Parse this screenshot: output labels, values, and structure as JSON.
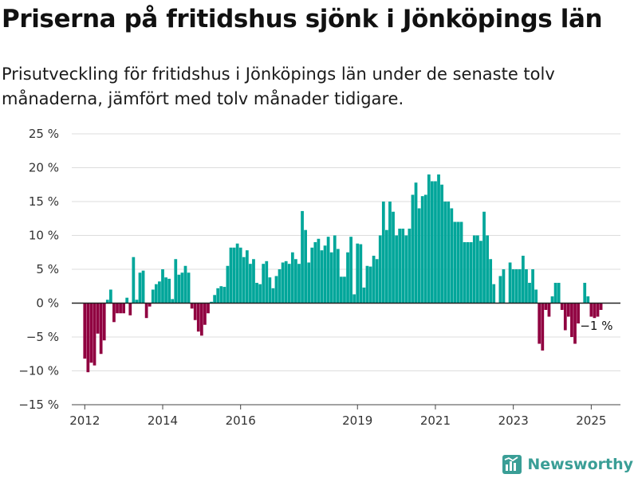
{
  "title": "Priserna på fritidshus sjönk i Jönköpings län",
  "subtitle": "Prisutveckling för fritidshus i Jönköpings län under de senaste tolv månaderna, jämfört med tolv månader tidigare.",
  "brand": {
    "name": "Newsworthy",
    "icon": "newsworthy-logo-icon"
  },
  "colors": {
    "positive": "#00a69a",
    "negative": "#900040",
    "grid": "#dddddd",
    "zero": "#222222"
  },
  "chart_data": {
    "type": "bar",
    "xlabel": "",
    "ylabel": "",
    "ylim": [
      -15,
      25
    ],
    "y_ticks": [
      25,
      20,
      15,
      10,
      5,
      0,
      -5,
      -10,
      -15
    ],
    "y_tick_labels": [
      "25 %",
      "20 %",
      "15 %",
      "10 %",
      "5 %",
      "0 %",
      "−5 %",
      "−10 %",
      "−15 %"
    ],
    "x_ticks": [
      {
        "label": "2012",
        "date": "2012-01"
      },
      {
        "label": "2014",
        "date": "2014-01"
      },
      {
        "label": "2016",
        "date": "2016-01"
      },
      {
        "label": "2019",
        "date": "2019-01"
      },
      {
        "label": "2021",
        "date": "2021-01"
      },
      {
        "label": "2023",
        "date": "2023-01"
      },
      {
        "label": "2025",
        "date": "2025-01"
      }
    ],
    "grid": true,
    "annotation": {
      "text": "−1 %",
      "date": "2025-01"
    },
    "series": [
      {
        "unit": "%",
        "points": [
          [
            "2012-01",
            -8.2
          ],
          [
            "2012-02",
            -10.2
          ],
          [
            "2012-03",
            -8.8
          ],
          [
            "2012-04",
            -9.2
          ],
          [
            "2012-05",
            -4.5
          ],
          [
            "2012-06",
            -7.5
          ],
          [
            "2012-07",
            -5.5
          ],
          [
            "2012-08",
            0.5
          ],
          [
            "2012-09",
            2.0
          ],
          [
            "2012-10",
            -2.8
          ],
          [
            "2012-11",
            -1.5
          ],
          [
            "2012-12",
            -1.5
          ],
          [
            "2013-01",
            -1.5
          ],
          [
            "2013-02",
            0.8
          ],
          [
            "2013-03",
            -1.8
          ],
          [
            "2013-04",
            6.8
          ],
          [
            "2013-05",
            0.5
          ],
          [
            "2013-06",
            4.5
          ],
          [
            "2013-07",
            4.8
          ],
          [
            "2013-08",
            -2.2
          ],
          [
            "2013-09",
            -0.5
          ],
          [
            "2013-10",
            2.0
          ],
          [
            "2013-11",
            2.8
          ],
          [
            "2013-12",
            3.2
          ],
          [
            "2014-01",
            5.0
          ],
          [
            "2014-02",
            3.8
          ],
          [
            "2014-03",
            3.6
          ],
          [
            "2014-04",
            0.6
          ],
          [
            "2014-05",
            6.5
          ],
          [
            "2014-06",
            4.2
          ],
          [
            "2014-07",
            4.5
          ],
          [
            "2014-08",
            5.5
          ],
          [
            "2014-09",
            4.5
          ],
          [
            "2014-10",
            -0.8
          ],
          [
            "2014-11",
            -2.5
          ],
          [
            "2014-12",
            -4.2
          ],
          [
            "2015-01",
            -4.8
          ],
          [
            "2015-02",
            -3.2
          ],
          [
            "2015-03",
            -1.5
          ],
          [
            "2015-04",
            0.2
          ],
          [
            "2015-05",
            1.2
          ],
          [
            "2015-06",
            2.2
          ],
          [
            "2015-07",
            2.5
          ],
          [
            "2015-08",
            2.4
          ],
          [
            "2015-09",
            5.5
          ],
          [
            "2015-10",
            8.2
          ],
          [
            "2015-11",
            8.2
          ],
          [
            "2015-12",
            8.8
          ],
          [
            "2016-01",
            8.2
          ],
          [
            "2016-02",
            6.8
          ],
          [
            "2016-03",
            7.8
          ],
          [
            "2016-04",
            5.8
          ],
          [
            "2016-05",
            6.5
          ],
          [
            "2016-06",
            3.0
          ],
          [
            "2016-07",
            2.8
          ],
          [
            "2016-08",
            5.8
          ],
          [
            "2016-09",
            6.2
          ],
          [
            "2016-10",
            3.8
          ],
          [
            "2016-11",
            2.2
          ],
          [
            "2016-12",
            4.0
          ],
          [
            "2017-01",
            5.0
          ],
          [
            "2017-02",
            6.0
          ],
          [
            "2017-03",
            6.2
          ],
          [
            "2017-04",
            5.8
          ],
          [
            "2017-05",
            7.5
          ],
          [
            "2017-06",
            6.5
          ],
          [
            "2017-07",
            5.8
          ],
          [
            "2017-08",
            13.6
          ],
          [
            "2017-09",
            10.8
          ],
          [
            "2017-10",
            6.0
          ],
          [
            "2017-11",
            8.2
          ],
          [
            "2017-12",
            9.0
          ],
          [
            "2018-01",
            9.5
          ],
          [
            "2018-02",
            7.8
          ],
          [
            "2018-03",
            8.5
          ],
          [
            "2018-04",
            9.8
          ],
          [
            "2018-05",
            7.5
          ],
          [
            "2018-06",
            10.0
          ],
          [
            "2018-07",
            8.0
          ],
          [
            "2018-08",
            3.9
          ],
          [
            "2018-09",
            3.9
          ],
          [
            "2018-10",
            7.5
          ],
          [
            "2018-11",
            9.8
          ],
          [
            "2018-12",
            1.3
          ],
          [
            "2019-01",
            8.8
          ],
          [
            "2019-02",
            8.7
          ],
          [
            "2019-03",
            2.3
          ],
          [
            "2019-04",
            5.5
          ],
          [
            "2019-05",
            5.4
          ],
          [
            "2019-06",
            7.0
          ],
          [
            "2019-07",
            6.5
          ],
          [
            "2019-08",
            10.0
          ],
          [
            "2019-09",
            15.0
          ],
          [
            "2019-10",
            10.8
          ],
          [
            "2019-11",
            15.0
          ],
          [
            "2019-12",
            13.5
          ],
          [
            "2020-01",
            10.0
          ],
          [
            "2020-02",
            11.0
          ],
          [
            "2020-03",
            11.0
          ],
          [
            "2020-04",
            10.0
          ],
          [
            "2020-05",
            11.0
          ],
          [
            "2020-06",
            16.0
          ],
          [
            "2020-07",
            17.8
          ],
          [
            "2020-08",
            14.0
          ],
          [
            "2020-09",
            15.8
          ],
          [
            "2020-10",
            16.0
          ],
          [
            "2020-11",
            19.0
          ],
          [
            "2020-12",
            18.0
          ],
          [
            "2021-01",
            18.0
          ],
          [
            "2021-02",
            19.0
          ],
          [
            "2021-03",
            17.5
          ],
          [
            "2021-04",
            15.0
          ],
          [
            "2021-05",
            15.0
          ],
          [
            "2021-06",
            14.0
          ],
          [
            "2021-07",
            12.0
          ],
          [
            "2021-08",
            12.0
          ],
          [
            "2021-09",
            12.0
          ],
          [
            "2021-10",
            9.0
          ],
          [
            "2021-11",
            9.0
          ],
          [
            "2021-12",
            9.0
          ],
          [
            "2022-01",
            10.0
          ],
          [
            "2022-02",
            10.0
          ],
          [
            "2022-03",
            9.2
          ],
          [
            "2022-04",
            13.5
          ],
          [
            "2022-05",
            10.0
          ],
          [
            "2022-06",
            6.5
          ],
          [
            "2022-07",
            2.8
          ],
          [
            "2022-08",
            0.0
          ],
          [
            "2022-09",
            4.0
          ],
          [
            "2022-10",
            5.0
          ],
          [
            "2022-11",
            0.0
          ],
          [
            "2022-12",
            6.0
          ],
          [
            "2023-01",
            5.0
          ],
          [
            "2023-02",
            5.0
          ],
          [
            "2023-03",
            5.0
          ],
          [
            "2023-04",
            7.0
          ],
          [
            "2023-05",
            5.0
          ],
          [
            "2023-06",
            3.0
          ],
          [
            "2023-07",
            5.0
          ],
          [
            "2023-08",
            2.0
          ],
          [
            "2023-09",
            -6.0
          ],
          [
            "2023-10",
            -7.0
          ],
          [
            "2023-11",
            -1.0
          ],
          [
            "2023-12",
            -2.0
          ],
          [
            "2024-01",
            1.0
          ],
          [
            "2024-02",
            3.0
          ],
          [
            "2024-03",
            3.0
          ],
          [
            "2024-04",
            -1.0
          ],
          [
            "2024-05",
            -4.0
          ],
          [
            "2024-06",
            -2.0
          ],
          [
            "2024-07",
            -5.0
          ],
          [
            "2024-08",
            -6.0
          ],
          [
            "2024-09",
            -3.0
          ],
          [
            "2024-10",
            0.0
          ],
          [
            "2024-11",
            3.0
          ],
          [
            "2024-12",
            1.0
          ],
          [
            "2025-01",
            -2.0
          ],
          [
            "2025-02",
            -2.2
          ],
          [
            "2025-03",
            -2.0
          ],
          [
            "2025-04",
            -1.0
          ]
        ]
      }
    ]
  }
}
